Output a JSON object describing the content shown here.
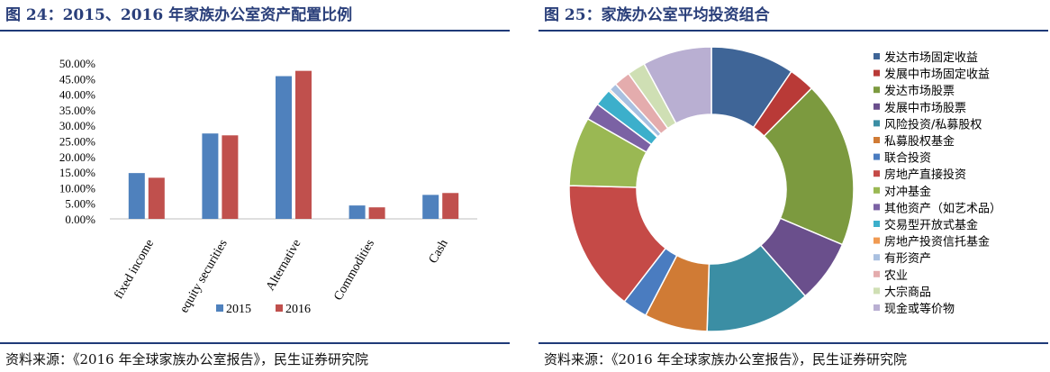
{
  "left": {
    "title": "图 24：2015、2016 年家族办公室资产配置比例",
    "source": "资料来源：《2016 年全球家族办公室报告》，民生证券研究院",
    "chart_data": {
      "type": "bar",
      "categories": [
        "fixed income",
        "equity securities",
        "Alternative",
        "Commodities",
        "Cash"
      ],
      "series": [
        {
          "name": "2015",
          "values": [
            14.7,
            27.4,
            45.8,
            4.3,
            7.7
          ],
          "color": "#4f81bd"
        },
        {
          "name": "2016",
          "values": [
            13.2,
            26.8,
            47.5,
            3.7,
            8.3
          ],
          "color": "#c0504d"
        }
      ],
      "yticks": [
        "0.00%",
        "5.00%",
        "10.00%",
        "15.00%",
        "20.00%",
        "25.00%",
        "30.00%",
        "35.00%",
        "40.00%",
        "45.00%",
        "50.00%"
      ],
      "ylim": [
        0,
        50
      ],
      "grid": false,
      "legend": "bottom"
    }
  },
  "right": {
    "title": "图 25：家族办公室平均投资组合",
    "source": "资料来源：《2016 年全球家族办公室报告》，民生证券研究院",
    "chart_data": {
      "type": "pie",
      "donut": true,
      "legend": "right",
      "slices": [
        {
          "label": "发达市场固定收益",
          "value": 9.7,
          "color": "#3f6597"
        },
        {
          "label": "发展中市场固定收益",
          "value": 3.0,
          "color": "#b93a37"
        },
        {
          "label": "发达市场股票",
          "value": 19.3,
          "color": "#7c9a3f"
        },
        {
          "label": "发展中市场股票",
          "value": 7.3,
          "color": "#6a4f8c"
        },
        {
          "label": "风险投资/私募股权",
          "value": 12.2,
          "color": "#3b8ea4"
        },
        {
          "label": "私募股权基金",
          "value": 7.3,
          "color": "#d07b35"
        },
        {
          "label": "联合投资",
          "value": 2.9,
          "color": "#4a7cc0"
        },
        {
          "label": "房地产直接投资",
          "value": 15.2,
          "color": "#c54a47"
        },
        {
          "label": "对冲基金",
          "value": 8.0,
          "color": "#9ab853"
        },
        {
          "label": "其他资产（如艺术品）",
          "value": 2.0,
          "color": "#7b62a4"
        },
        {
          "label": "交易型开放式基金",
          "value": 2.0,
          "color": "#3cafcb"
        },
        {
          "label": "房地产投资信托基金",
          "value": 0.2,
          "color": "#f09a52"
        },
        {
          "label": "有形资产",
          "value": 0.9,
          "color": "#a9c0e0"
        },
        {
          "label": "农业",
          "value": 1.9,
          "color": "#e4acad"
        },
        {
          "label": "大宗商品",
          "value": 2.1,
          "color": "#cfdfb4"
        },
        {
          "label": "现金或等价物",
          "value": 8.0,
          "color": "#b9afd2"
        }
      ]
    }
  }
}
